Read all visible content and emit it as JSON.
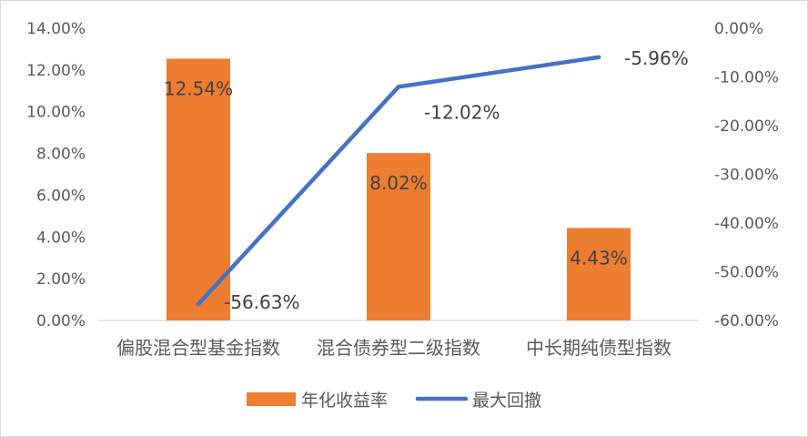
{
  "chart_data": {
    "type": "bar",
    "categories": [
      "偏股混合型基金指数",
      "混合债券型二级指数",
      "中长期纯债型指数"
    ],
    "series": [
      {
        "name": "年化收益率",
        "type": "bar",
        "axis": "left",
        "values": [
          12.54,
          8.02,
          4.43
        ],
        "labels": [
          "12.54%",
          "8.02%",
          "4.43%"
        ],
        "color": "#ED7D31"
      },
      {
        "name": "最大回撤",
        "type": "line",
        "axis": "right",
        "values": [
          -56.63,
          -12.02,
          -5.96
        ],
        "labels": [
          "-56.63%",
          "-12.02%",
          "-5.96%"
        ],
        "color": "#4472C4"
      }
    ],
    "y_left": {
      "lim": [
        0,
        14
      ],
      "ticks": [
        0,
        2,
        4,
        6,
        8,
        10,
        12,
        14
      ],
      "tick_labels": [
        "0.00%",
        "2.00%",
        "4.00%",
        "6.00%",
        "8.00%",
        "10.00%",
        "12.00%",
        "14.00%"
      ]
    },
    "y_right": {
      "lim": [
        -60,
        0
      ],
      "ticks": [
        -60,
        -50,
        -40,
        -30,
        -20,
        -10,
        0
      ],
      "tick_labels": [
        "-60.00%",
        "-50.00%",
        "-40.00%",
        "-30.00%",
        "-20.00%",
        "-10.00%",
        "0.00%"
      ]
    },
    "title": "",
    "xlabel": "",
    "ylabel": "",
    "grid": false,
    "legend": "bottom",
    "axis_line_color": "#d9d9d9"
  }
}
